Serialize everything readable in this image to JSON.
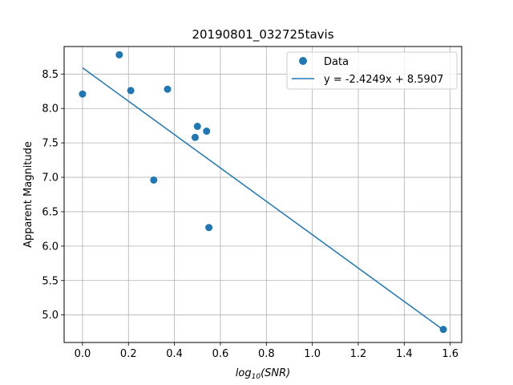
{
  "chart_data": {
    "type": "scatter",
    "title": "20190801_032725tavis",
    "xlabel_base": "log",
    "xlabel_sub": "10",
    "xlabel_arg": "(SNR)",
    "ylabel": "Apparent Magnitude",
    "xlim": [
      -0.08,
      1.65
    ],
    "ylim": [
      4.6,
      8.9
    ],
    "xticks": [
      0.0,
      0.2,
      0.4,
      0.6,
      0.8,
      1.0,
      1.2,
      1.4,
      1.6
    ],
    "xtick_labels": [
      "0.0",
      "0.2",
      "0.4",
      "0.6",
      "0.8",
      "1.0",
      "1.2",
      "1.4",
      "1.6"
    ],
    "yticks": [
      5.0,
      5.5,
      6.0,
      6.5,
      7.0,
      7.5,
      8.0,
      8.5
    ],
    "ytick_labels": [
      "5.0",
      "5.5",
      "6.0",
      "6.5",
      "7.0",
      "7.5",
      "8.0",
      "8.5"
    ],
    "grid": true,
    "legend_placement": "upper right",
    "series": [
      {
        "name": "Data",
        "kind": "scatter",
        "color": "#1f77b4",
        "x": [
          0.0,
          0.16,
          0.21,
          0.31,
          0.37,
          0.49,
          0.5,
          0.54,
          0.55,
          1.57
        ],
        "y": [
          8.21,
          8.78,
          8.26,
          6.96,
          8.28,
          7.58,
          7.74,
          7.67,
          6.27,
          4.79
        ]
      },
      {
        "name": "y = -2.4249x + 8.5907",
        "kind": "line",
        "color": "#1f77b4",
        "slope": -2.4249,
        "intercept": 8.5907,
        "x_range": [
          0.0,
          1.57
        ]
      }
    ]
  }
}
